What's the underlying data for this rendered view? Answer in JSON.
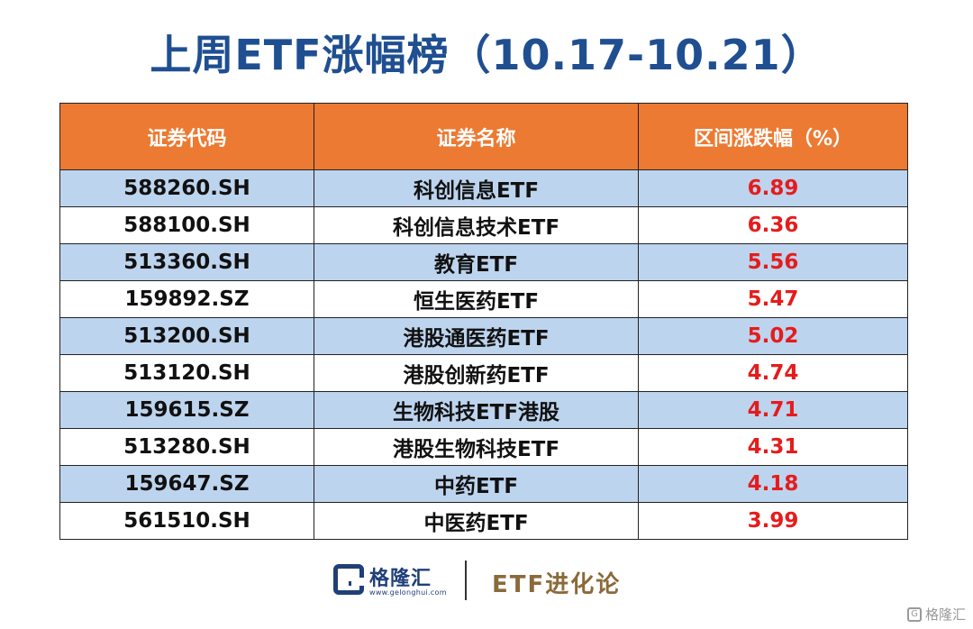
{
  "title": "上周ETF涨幅榜（10.17-10.21）",
  "table": {
    "headers": [
      "证券代码",
      "证券名称",
      "区间涨跌幅（%）"
    ],
    "rows": [
      {
        "code": "588260.SH",
        "name": "科创信息ETF",
        "change": "6.89"
      },
      {
        "code": "588100.SH",
        "name": "科创信息技术ETF",
        "change": "6.36"
      },
      {
        "code": "513360.SH",
        "name": "教育ETF",
        "change": "5.56"
      },
      {
        "code": "159892.SZ",
        "name": "恒生医药ETF",
        "change": "5.47"
      },
      {
        "code": "513200.SH",
        "name": "港股通医药ETF",
        "change": "5.02"
      },
      {
        "code": "513120.SH",
        "name": "港股创新药ETF",
        "change": "4.74"
      },
      {
        "code": "159615.SZ",
        "name": "生物科技ETF港股",
        "change": "4.71"
      },
      {
        "code": "513280.SH",
        "name": "港股生物科技ETF",
        "change": "4.31"
      },
      {
        "code": "159647.SZ",
        "name": "中药ETF",
        "change": "4.18"
      },
      {
        "code": "561510.SH",
        "name": "中医药ETF",
        "change": "3.99"
      }
    ]
  },
  "footer": {
    "brand_name": "格隆汇",
    "brand_url": "www.gelonghui.com",
    "column_name": "ETF进化论",
    "watermark": "格隆汇",
    "logo_icon": "gelonghui-logo-icon"
  },
  "colors": {
    "title": "#1f4f91",
    "header_bg": "#ec7a32",
    "row_alt_bg": "#bdd4ee",
    "positive_change": "#e51c1c"
  }
}
